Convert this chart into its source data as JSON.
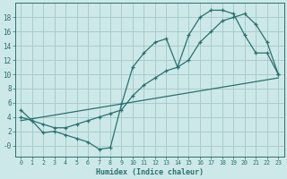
{
  "xlabel": "Humidex (Indice chaleur)",
  "bg_color": "#cde8e8",
  "grid_color": "#a8cccc",
  "line_color": "#2a7070",
  "xlim": [
    -0.5,
    23.5
  ],
  "ylim": [
    -1.5,
    20.0
  ],
  "xticks": [
    0,
    1,
    2,
    3,
    4,
    5,
    6,
    7,
    8,
    9,
    10,
    11,
    12,
    13,
    14,
    15,
    16,
    17,
    18,
    19,
    20,
    21,
    22,
    23
  ],
  "yticks": [
    0,
    2,
    4,
    6,
    8,
    10,
    12,
    14,
    16,
    18
  ],
  "ytick_labels": [
    "-0",
    "2",
    "4",
    "6",
    "8",
    "10",
    "12",
    "14",
    "16",
    "18"
  ],
  "line1_x": [
    0,
    1,
    2,
    3,
    4,
    5,
    6,
    7,
    8,
    9,
    10,
    11,
    12,
    13,
    14,
    15,
    16,
    17,
    18,
    19,
    20,
    21,
    22,
    23
  ],
  "line1_y": [
    5,
    3.5,
    1.8,
    2.0,
    1.5,
    1.0,
    0.5,
    -0.5,
    -0.3,
    5.8,
    11,
    13,
    14.5,
    15.0,
    11.0,
    15.5,
    18.0,
    19.0,
    19.0,
    18.5,
    15.5,
    13.0,
    13.0,
    10.0
  ],
  "line2_x": [
    0,
    1,
    2,
    3,
    4,
    5,
    6,
    7,
    8,
    9,
    10,
    11,
    12,
    13,
    14,
    15,
    16,
    17,
    18,
    19,
    20,
    21,
    22,
    23
  ],
  "line2_y": [
    4.0,
    3.5,
    3.0,
    2.5,
    2.5,
    3.0,
    3.5,
    4.0,
    4.5,
    5.0,
    7.0,
    8.5,
    9.5,
    10.5,
    11.0,
    12.0,
    14.5,
    16.0,
    17.5,
    18.0,
    18.5,
    17.0,
    14.5,
    10.0
  ],
  "line3_x": [
    0,
    23
  ],
  "line3_y": [
    3.5,
    9.5
  ]
}
